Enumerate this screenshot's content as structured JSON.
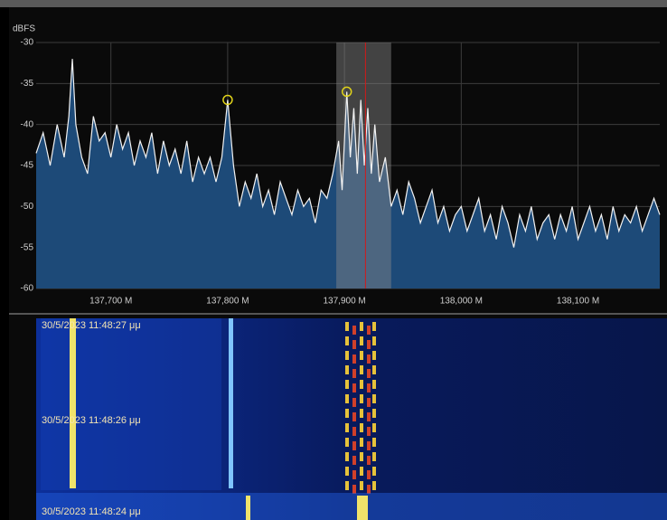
{
  "chart_data": {
    "type": "area",
    "y_axis_label": "dBFS",
    "xlim": [
      137.636,
      138.17
    ],
    "ylim": [
      -60,
      -30
    ],
    "xticks": [
      {
        "value": 137.7,
        "label": "137,700 M"
      },
      {
        "value": 137.8,
        "label": "137,800 M"
      },
      {
        "value": 137.9,
        "label": "137,900 M"
      },
      {
        "value": 138.0,
        "label": "138,000 M"
      },
      {
        "value": 138.1,
        "label": "138,100 M"
      }
    ],
    "yticks": [
      -60,
      -55,
      -50,
      -45,
      -40,
      -35,
      -30
    ],
    "grid": true,
    "line_color": "#f2f2f2",
    "fill_color": "#1d4a78",
    "selection": [
      137.893,
      137.94
    ],
    "selection_color": "#8a8a8a",
    "center": 137.918,
    "center_color": "#d21a1a",
    "markers": [
      {
        "x": 137.8,
        "y": -37
      },
      {
        "x": 137.902,
        "y": -36
      }
    ],
    "marker_color": "#e0d21a",
    "x": [
      137.636,
      137.642,
      137.648,
      137.654,
      137.66,
      137.664,
      137.667,
      137.67,
      137.675,
      137.68,
      137.685,
      137.69,
      137.695,
      137.7,
      137.705,
      137.71,
      137.715,
      137.72,
      137.725,
      137.73,
      137.735,
      137.74,
      137.745,
      137.75,
      137.755,
      137.76,
      137.765,
      137.77,
      137.775,
      137.78,
      137.785,
      137.79,
      137.795,
      137.8,
      137.805,
      137.81,
      137.815,
      137.82,
      137.825,
      137.83,
      137.835,
      137.84,
      137.845,
      137.85,
      137.855,
      137.86,
      137.865,
      137.87,
      137.875,
      137.88,
      137.885,
      137.89,
      137.895,
      137.898,
      137.902,
      137.905,
      137.908,
      137.911,
      137.914,
      137.917,
      137.92,
      137.923,
      137.926,
      137.93,
      137.935,
      137.94,
      137.945,
      137.95,
      137.955,
      137.96,
      137.965,
      137.97,
      137.975,
      137.98,
      137.985,
      137.99,
      137.995,
      138.0,
      138.005,
      138.01,
      138.015,
      138.02,
      138.025,
      138.03,
      138.035,
      138.04,
      138.045,
      138.05,
      138.055,
      138.06,
      138.065,
      138.07,
      138.075,
      138.08,
      138.085,
      138.09,
      138.095,
      138.1,
      138.105,
      138.11,
      138.115,
      138.12,
      138.125,
      138.13,
      138.135,
      138.14,
      138.145,
      138.15,
      138.155,
      138.16,
      138.165,
      138.17
    ],
    "values": [
      -43.5,
      -41,
      -45,
      -40,
      -44,
      -39,
      -32,
      -40,
      -44,
      -46,
      -39,
      -42,
      -41,
      -44,
      -40,
      -43,
      -41,
      -45,
      -42,
      -44,
      -41,
      -46,
      -42,
      -45,
      -43,
      -46,
      -42,
      -47,
      -44,
      -46,
      -44,
      -47,
      -44,
      -37,
      -45,
      -50,
      -47,
      -49,
      -46,
      -50,
      -48,
      -51,
      -47,
      -49,
      -51,
      -48,
      -50,
      -49,
      -52,
      -48,
      -49,
      -46,
      -42,
      -48,
      -36,
      -44,
      -38,
      -46,
      -37,
      -45,
      -38,
      -46,
      -40,
      -47,
      -44,
      -50,
      -48,
      -51,
      -47,
      -49,
      -52,
      -50,
      -48,
      -52,
      -50,
      -53,
      -51,
      -50,
      -53,
      -51,
      -49,
      -53,
      -51,
      -54,
      -50,
      -52,
      -55,
      -51,
      -53,
      -50,
      -54,
      -52,
      -51,
      -54,
      -51,
      -53,
      -50,
      -54,
      -52,
      -50,
      -53,
      -51,
      -54,
      -50,
      -53,
      -51,
      -52,
      -50,
      -53,
      -51,
      -49,
      -51
    ]
  },
  "waterfall": {
    "timestamps": [
      "30/5/2023 11:48:27 μμ",
      "30/5/2023 11:48:26 μμ",
      "30/5/2023 11:48:24 μμ"
    ]
  }
}
